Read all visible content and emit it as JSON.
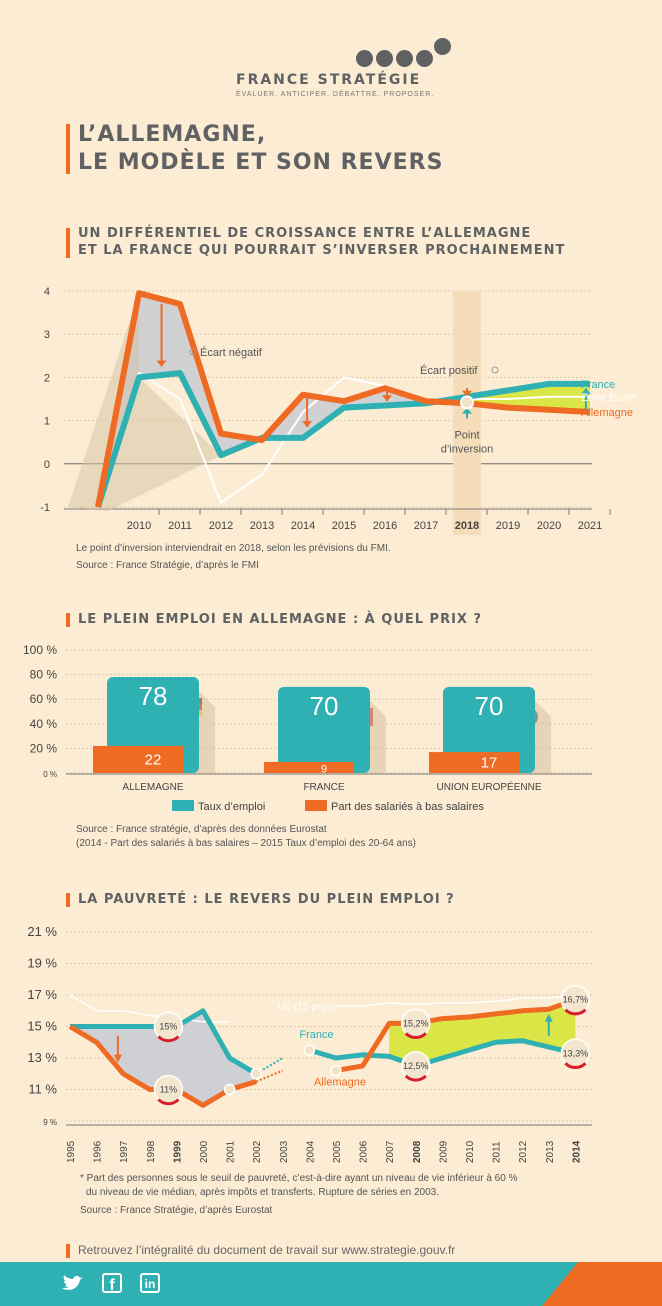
{
  "header": {
    "brand": "FRANCE STRATÉGIE",
    "tagline": "ÉVALUER. ANTICIPER. DÉBATTRE. PROPOSER.",
    "title_line1": "L’ALLEMAGNE,",
    "title_line2": "LE MODÈLE ET SON REVERS"
  },
  "colors": {
    "orange": "#ef6a22",
    "teal": "#2fb0b3",
    "lime": "#c8df1e",
    "grey": "#5f6162"
  },
  "chart_data": [
    {
      "type": "line",
      "title": "UN DIFFÉRENTIEL DE CROISSANCE ENTRE L’ALLEMAGNE ET LA FRANCE QUI POURRAIT S’INVERSER PROCHAINEMENT",
      "title_line1": "UN DIFFÉRENTIEL DE CROISSANCE ENTRE L’ALLEMAGNE",
      "title_line2": "ET LA FRANCE QUI POURRAIT S’INVERSER PROCHAINEMENT",
      "x": [
        2009,
        2010,
        2011,
        2012,
        2013,
        2014,
        2015,
        2016,
        2017,
        2018,
        2019,
        2020,
        2021
      ],
      "x_ticks": [
        "2010",
        "2011",
        "2012",
        "2013",
        "2014",
        "2015",
        "2016",
        "2017",
        "2018",
        "2019",
        "2020",
        "2021"
      ],
      "y_ticks": [
        "4",
        "3",
        "2",
        "1",
        "0",
        "-1"
      ],
      "ylim": [
        -1,
        4
      ],
      "series": [
        {
          "name": "France",
          "color": "#2fb0b3",
          "values": [
            -1.0,
            2.0,
            2.1,
            0.2,
            0.6,
            0.6,
            1.3,
            1.35,
            1.4,
            1.55,
            1.7,
            1.85,
            1.85
          ]
        },
        {
          "name": "Zone Euro*",
          "color": "#ffffff",
          "values": [
            -0.9,
            2.1,
            1.5,
            -0.9,
            -0.25,
            1.2,
            2.0,
            1.8,
            1.4,
            1.5,
            1.5,
            1.55,
            1.55
          ]
        },
        {
          "name": "Allemagne",
          "color": "#ef6a22",
          "values": [
            -1.0,
            3.95,
            3.7,
            0.7,
            0.55,
            1.6,
            1.45,
            1.75,
            1.45,
            1.4,
            1.3,
            1.25,
            1.2
          ]
        }
      ],
      "annotations": {
        "negative_gap": "Écart négatif",
        "positive_gap": "Écart positif",
        "inversion_line1": "Point",
        "inversion_line2": "d’inversion"
      },
      "note": "Le point d’inversion interviendrait en 2018, selon les prévisions du FMI.",
      "source": "Source : France Stratégie, d’après le FMI"
    },
    {
      "type": "bar",
      "title": "LE PLEIN EMPLOI EN ALLEMAGNE : À QUEL PRIX ?",
      "categories": [
        "ALLEMAGNE",
        "FRANCE",
        "UNION EUROPÉENNE"
      ],
      "y_ticks": [
        "100 %",
        "80 %",
        "60 %",
        "40 %",
        "20 %",
        "0 %"
      ],
      "ylim": [
        0,
        100
      ],
      "series": [
        {
          "name": "Taux d’emploi",
          "color": "#2fb0b3",
          "values": [
            78,
            70,
            70
          ]
        },
        {
          "name": "Part des salariés à bas salaires",
          "color": "#ef6a22",
          "values": [
            22,
            9,
            17
          ]
        }
      ],
      "source": "Source : France stratégie, d’après des données Eurostat",
      "source2": "(2014 - Part des salariés à bas salaires – 2015 Taux d’emploi des 20-64 ans)"
    },
    {
      "type": "line",
      "title": "LA PAUVRETÉ : LE REVERS DU PLEIN EMPLOI ?",
      "x": [
        "1995",
        "1996",
        "1997",
        "1998",
        "1999",
        "2000",
        "2001",
        "2002",
        "2003",
        "2004",
        "2005",
        "2006",
        "2007",
        "2008",
        "2009",
        "2010",
        "2011",
        "2012",
        "2013",
        "2014"
      ],
      "bold_ticks": [
        "1999",
        "2008",
        "2014"
      ],
      "y_ticks": [
        "21 %",
        "19 %",
        "17 %",
        "15 %",
        "13 %",
        "11 %",
        "9 %"
      ],
      "ylim": [
        9,
        21
      ],
      "series": [
        {
          "name": "France",
          "color": "#2fb0b3",
          "segment1": {
            "x": [
              1995,
              1996,
              1997,
              1998,
              1999,
              2000,
              2001,
              2002
            ],
            "values": [
              15,
              15,
              15,
              15,
              15,
              16,
              13,
              12
            ]
          },
          "segment2": {
            "x": [
              2004,
              2005,
              2006,
              2007,
              2008,
              2009,
              2010,
              2011,
              2012,
              2013,
              2014
            ],
            "values": [
              13.5,
              13,
              13.2,
              13.1,
              12.5,
              13.0,
              13.5,
              14.0,
              14.1,
              13.7,
              13.3
            ]
          }
        },
        {
          "name": "Allemagne",
          "color": "#ef6a22",
          "segment1": {
            "x": [
              1995,
              1996,
              1997,
              1998,
              1999,
              2000,
              2001,
              2002
            ],
            "values": [
              15,
              14,
              12,
              11,
              11,
              10,
              11,
              11.5
            ]
          },
          "segment2": {
            "x": [
              2005,
              2006,
              2007,
              2008,
              2009,
              2010,
              2011,
              2012,
              2013,
              2014
            ],
            "values": [
              12.2,
              12.5,
              15.2,
              15.2,
              15.5,
              15.6,
              15.8,
              16.0,
              16.1,
              16.7
            ]
          }
        },
        {
          "name": "UE (15 pays)",
          "color": "#ffffff",
          "segment1": {
            "x": [
              1995,
              1996,
              1997,
              1998,
              1999,
              2000,
              2001
            ],
            "values": [
              17,
              16,
              16,
              15.7,
              15.5,
              15.3,
              15.3
            ]
          },
          "segment2": {
            "x": [
              2005,
              2006,
              2007,
              2008,
              2009,
              2010,
              2011,
              2012,
              2013,
              2014
            ],
            "values": [
              16.3,
              16.3,
              16.5,
              16.4,
              16.5,
              16.5,
              16.6,
              16.8,
              16.8,
              17.0
            ]
          }
        }
      ],
      "point_labels": [
        "15%",
        "11%",
        "15,2%",
        "12,5%",
        "16,7%",
        "13,3%"
      ],
      "footnote_line1": "* Part des personnes sous le seuil de pauvreté, c’est-à-dire ayant un niveau de vie inférieur à 60 %",
      "footnote_line2": "du niveau de vie médian, après impôts et transferts. Rupture de séries en 2003.",
      "source": "Source : France Stratégie, d’après Eurostat"
    }
  ],
  "footer": {
    "link_text": "Retrouvez l’intégralité du document de travail sur www.strategie.gouv.fr",
    "social": [
      "twitter-icon",
      "facebook-icon",
      "linkedin-icon"
    ],
    "twitter_glyph": "🐦",
    "facebook_glyph": "f",
    "linkedin_glyph": "in"
  }
}
